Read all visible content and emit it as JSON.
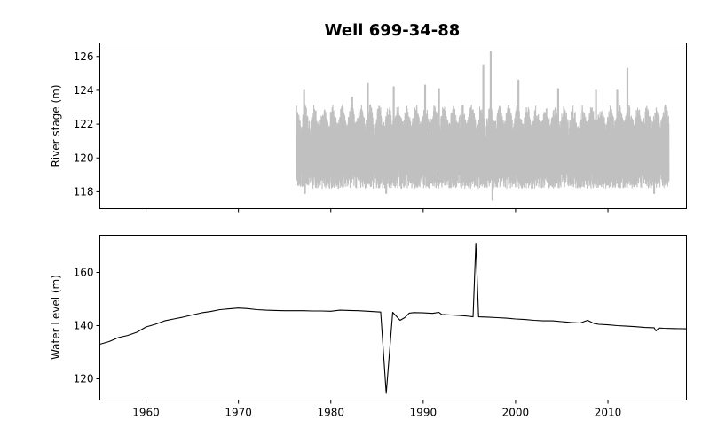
{
  "figure": {
    "title": "Well 699-34-88"
  },
  "chart_data": [
    {
      "type": "line",
      "panel": "top",
      "ylabel": "River stage (m)",
      "xlim": [
        1955.0,
        2018.5
      ],
      "ylim": [
        117.0,
        126.8
      ],
      "xticks": [
        1960,
        1970,
        1980,
        1990,
        2000,
        2010
      ],
      "show_xtick_labels": false,
      "yticks": [
        118,
        120,
        122,
        124,
        126
      ],
      "grid": false,
      "series": [
        {
          "color": "#c0c0c0",
          "x_range": [
            1976.3,
            2016.6
          ],
          "baseline": 120.2,
          "min": 117.5,
          "max": 126.3,
          "peaks": [
            {
              "x": 1977.1,
              "y": 124.0
            },
            {
              "x": 1980.0,
              "y": 122.7
            },
            {
              "x": 1982.3,
              "y": 123.6
            },
            {
              "x": 1984.0,
              "y": 124.4
            },
            {
              "x": 1986.8,
              "y": 124.2
            },
            {
              "x": 1990.2,
              "y": 124.3
            },
            {
              "x": 1991.7,
              "y": 124.1
            },
            {
              "x": 1996.5,
              "y": 125.5
            },
            {
              "x": 1997.3,
              "y": 126.3
            },
            {
              "x": 2000.3,
              "y": 124.6
            },
            {
              "x": 2004.6,
              "y": 124.1
            },
            {
              "x": 2008.7,
              "y": 124.0
            },
            {
              "x": 2011.0,
              "y": 124.0
            },
            {
              "x": 2012.1,
              "y": 125.3
            }
          ],
          "troughs": [
            {
              "x": 1977.2,
              "y": 117.9
            },
            {
              "x": 1986.0,
              "y": 117.9
            },
            {
              "x": 1997.5,
              "y": 117.5
            },
            {
              "x": 2015.0,
              "y": 117.9
            }
          ]
        }
      ]
    },
    {
      "type": "line",
      "panel": "bottom",
      "ylabel": "Water Level (m)",
      "xlim": [
        1955.0,
        2018.5
      ],
      "ylim": [
        112.0,
        174.0
      ],
      "xticks": [
        1960,
        1970,
        1980,
        1990,
        2000,
        2010
      ],
      "xtick_labels": [
        "1960",
        "1970",
        "1980",
        "1990",
        "2000",
        "2010"
      ],
      "yticks": [
        120,
        140,
        160
      ],
      "grid": false,
      "series": [
        {
          "color": "#000000",
          "x": [
            1955.0,
            1956.0,
            1957.0,
            1958.0,
            1959.0,
            1960.0,
            1961.0,
            1962.0,
            1963.0,
            1964.0,
            1965.0,
            1966.0,
            1967.0,
            1968.0,
            1969.0,
            1970.0,
            1971.0,
            1972.0,
            1973.0,
            1974.0,
            1975.0,
            1976.0,
            1977.0,
            1978.0,
            1979.0,
            1980.0,
            1981.0,
            1982.0,
            1983.0,
            1984.0,
            1985.0,
            1985.4,
            1986.0,
            1986.7,
            1987.5,
            1988.0,
            1988.5,
            1989.0,
            1990.0,
            1991.0,
            1991.7,
            1992.0,
            1993.0,
            1994.0,
            1995.0,
            1995.4,
            1995.7,
            1996.0,
            1997.0,
            1998.0,
            1999.0,
            2000.0,
            2001.0,
            2002.0,
            2003.0,
            2004.0,
            2005.0,
            2006.0,
            2007.0,
            2007.8,
            2008.5,
            2009.0,
            2010.0,
            2011.0,
            2012.0,
            2013.0,
            2014.0,
            2015.0,
            2015.2,
            2015.5,
            2016.0,
            2017.0,
            2018.5
          ],
          "y": [
            133.0,
            134.0,
            135.5,
            136.3,
            137.5,
            139.5,
            140.5,
            141.8,
            142.5,
            143.2,
            144.0,
            144.8,
            145.3,
            146.0,
            146.3,
            146.6,
            146.4,
            146.0,
            145.8,
            145.7,
            145.6,
            145.6,
            145.6,
            145.5,
            145.5,
            145.4,
            145.8,
            145.7,
            145.6,
            145.4,
            145.2,
            145.1,
            114.5,
            145.0,
            142.0,
            143.0,
            144.7,
            144.9,
            144.8,
            144.6,
            145.0,
            144.2,
            144.0,
            143.8,
            143.5,
            143.3,
            171.0,
            143.3,
            143.2,
            143.0,
            142.8,
            142.5,
            142.3,
            142.0,
            141.8,
            141.8,
            141.5,
            141.2,
            141.0,
            142.0,
            140.8,
            140.5,
            140.3,
            140.0,
            139.8,
            139.6,
            139.3,
            139.2,
            138.0,
            139.1,
            139.0,
            138.9,
            138.8
          ]
        }
      ]
    }
  ]
}
